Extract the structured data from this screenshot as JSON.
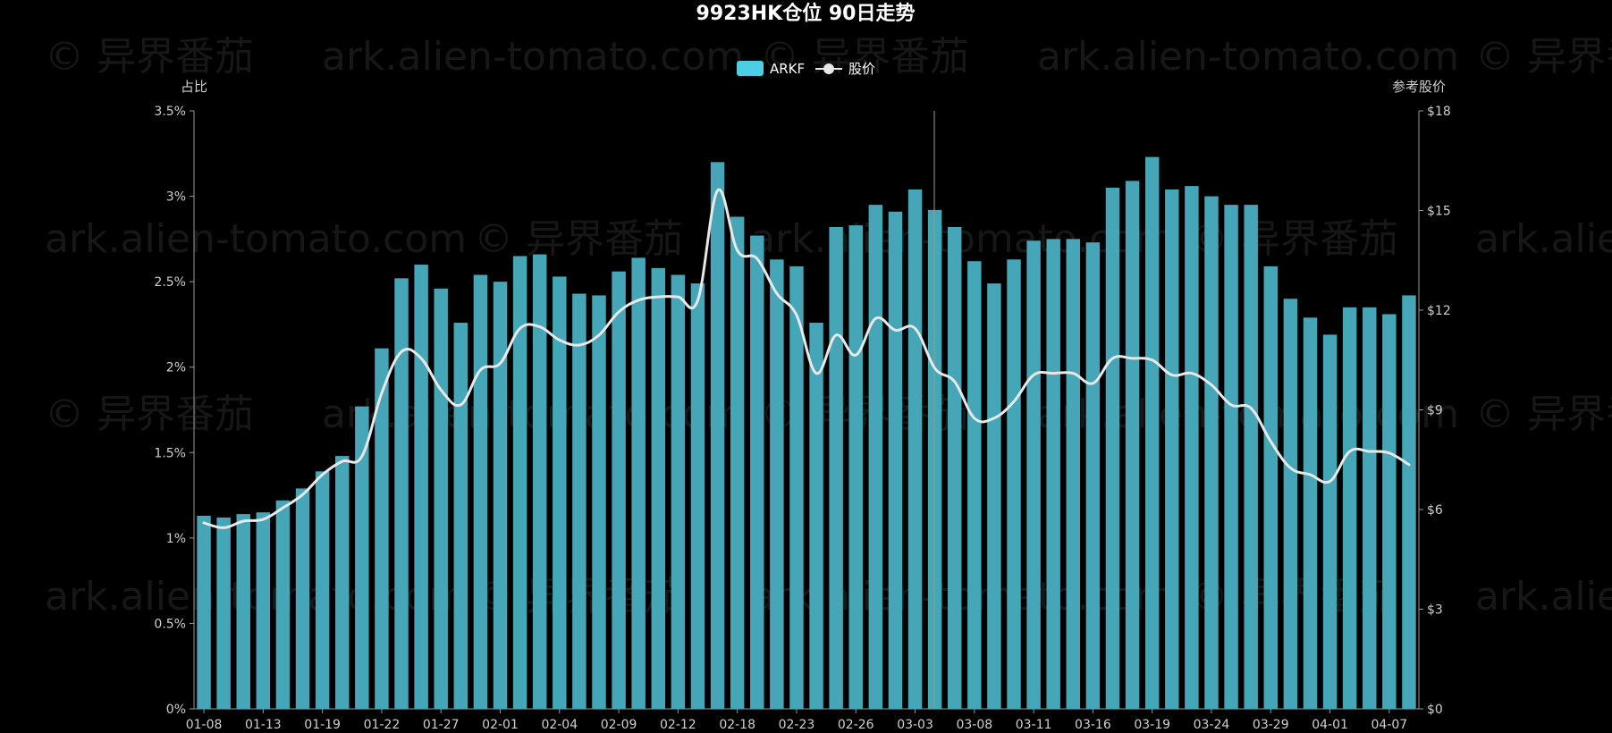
{
  "watermark": {
    "brand": "© 异界番茄",
    "site": "ark.alien-tomato.com"
  },
  "colors": {
    "background": "#000000",
    "bar": "#44a6b6",
    "legend_bar": "#4ccfe0",
    "line": "#e8e8e8",
    "axis": "#9a9a9a",
    "text": "#e0e0e0"
  },
  "chart_data": {
    "type": "bar",
    "title": "9923HK仓位 90日走势",
    "ylabel_left": "占比",
    "ylabel_right": "参考股价",
    "legend": [
      {
        "name": "ARKF",
        "kind": "bar"
      },
      {
        "name": "股价",
        "kind": "line"
      }
    ],
    "legend_position": "top-center",
    "ylim_left": [
      0,
      3.5
    ],
    "yticks_left": [
      "0%",
      "0.5%",
      "1%",
      "1.5%",
      "2%",
      "2.5%",
      "3%",
      "3.5%"
    ],
    "ylim_right": [
      0,
      18
    ],
    "yticks_right": [
      "$0",
      "$3",
      "$6",
      "$9",
      "$12",
      "$15",
      "$18"
    ],
    "grid": false,
    "xtick_labels": [
      "01-08",
      "01-13",
      "01-19",
      "01-22",
      "01-27",
      "02-01",
      "02-04",
      "02-09",
      "02-12",
      "02-18",
      "02-23",
      "02-26",
      "03-03",
      "03-08",
      "03-11",
      "03-16",
      "03-19",
      "03-24",
      "03-29",
      "04-01",
      "04-07"
    ],
    "series": [
      {
        "name": "ARKF",
        "type": "bar",
        "values": [
          1.13,
          1.12,
          1.14,
          1.15,
          1.22,
          1.29,
          1.39,
          1.48,
          1.77,
          2.11,
          2.52,
          2.6,
          2.46,
          2.26,
          2.54,
          2.5,
          2.65,
          2.66,
          2.53,
          2.43,
          2.42,
          2.56,
          2.64,
          2.58,
          2.54,
          2.49,
          3.2,
          2.88,
          2.77,
          2.63,
          2.59,
          2.26,
          2.82,
          2.83,
          2.95,
          2.91,
          3.04,
          2.92,
          2.82,
          2.62,
          2.49,
          2.63,
          2.74,
          2.75,
          2.75,
          2.73,
          3.05,
          3.09,
          3.23,
          3.04,
          3.06,
          3.0,
          2.95,
          2.95,
          2.59,
          2.4,
          2.29,
          2.19,
          2.35,
          2.35,
          2.31,
          2.42
        ]
      },
      {
        "name": "股价",
        "type": "line",
        "values": [
          5.6,
          5.45,
          5.65,
          5.7,
          6.05,
          6.45,
          7.05,
          7.45,
          7.6,
          9.5,
          10.75,
          10.55,
          9.6,
          9.15,
          10.2,
          10.4,
          11.45,
          11.5,
          11.1,
          10.95,
          11.25,
          11.95,
          12.3,
          12.4,
          12.4,
          12.3,
          15.6,
          13.8,
          13.55,
          12.5,
          11.85,
          10.1,
          11.25,
          10.65,
          11.75,
          11.4,
          11.45,
          10.25,
          9.85,
          8.75,
          8.75,
          9.25,
          10.05,
          10.1,
          10.1,
          9.8,
          10.55,
          10.55,
          10.5,
          10.05,
          10.1,
          9.75,
          9.15,
          9.05,
          8.05,
          7.25,
          7.05,
          6.85,
          7.75,
          7.75,
          7.7,
          7.35
        ]
      }
    ]
  }
}
